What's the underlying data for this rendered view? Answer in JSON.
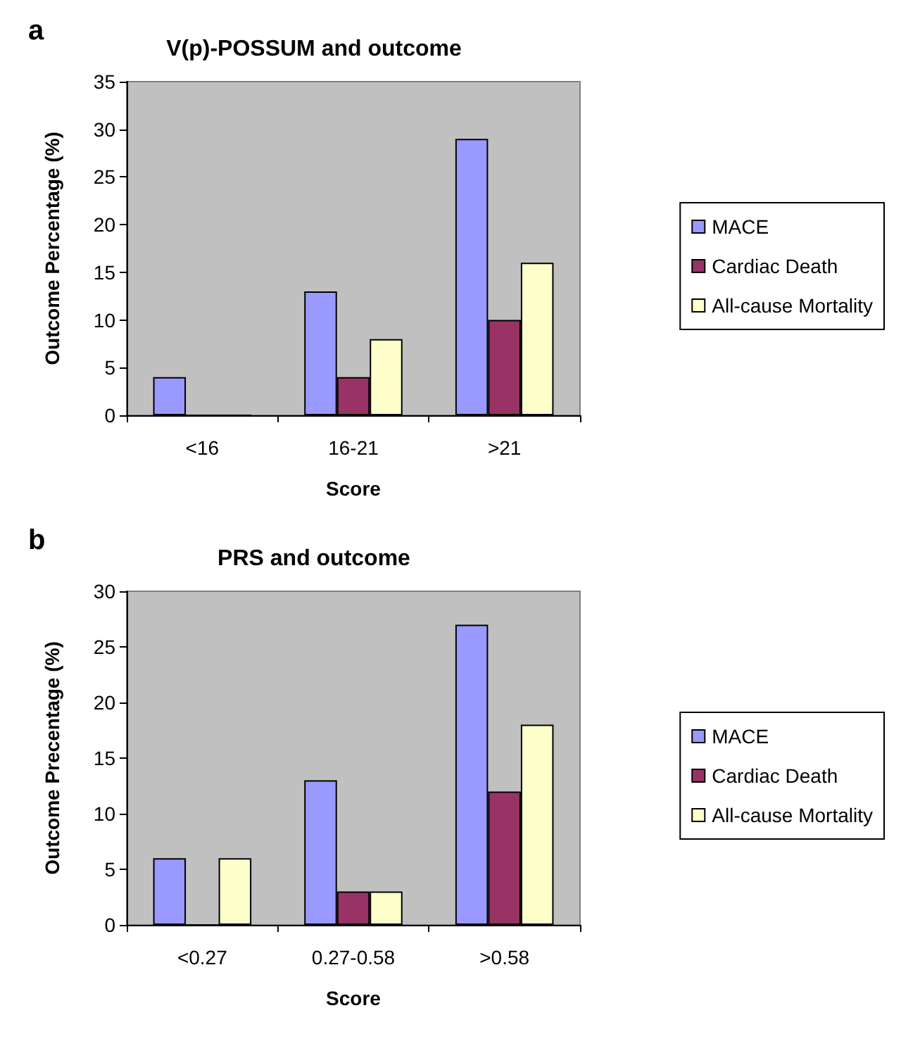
{
  "chart_data": [
    {
      "type": "bar",
      "title": "V(p)-POSSUM and outcome",
      "xlabel": "Score",
      "ylabel": "Outcome Percentage (%)",
      "annotations": [
        "a"
      ],
      "categories": [
        "<16",
        "16-21",
        ">21"
      ],
      "series": [
        {
          "name": "MACE",
          "color": "#9999ff",
          "values": [
            4,
            13,
            29
          ]
        },
        {
          "name": "Cardiac Death",
          "color": "#993366",
          "values": [
            0,
            4,
            10
          ]
        },
        {
          "name": "All-cause Mortality",
          "color": "#ffffcc",
          "values": [
            0,
            8,
            16
          ]
        }
      ],
      "ylim": [
        0,
        35
      ],
      "yticks": [
        0,
        5,
        10,
        15,
        20,
        25,
        30,
        35
      ],
      "grid": false,
      "legend": "right"
    },
    {
      "type": "bar",
      "title": "PRS and outcome",
      "xlabel": "Score",
      "ylabel": "Outcome Precentage (%)",
      "annotations": [
        "b"
      ],
      "categories": [
        "<0.27",
        "0.27-0.58",
        ">0.58"
      ],
      "series": [
        {
          "name": "MACE",
          "color": "#9999ff",
          "values": [
            6,
            13,
            27
          ]
        },
        {
          "name": "Cardiac Death",
          "color": "#993366",
          "values": [
            0,
            3,
            12
          ]
        },
        {
          "name": "All-cause Mortality",
          "color": "#ffffcc",
          "values": [
            6,
            3,
            18
          ]
        }
      ],
      "ylim": [
        0,
        30
      ],
      "yticks": [
        0,
        5,
        10,
        15,
        20,
        25,
        30
      ],
      "grid": false,
      "legend": "right"
    }
  ]
}
